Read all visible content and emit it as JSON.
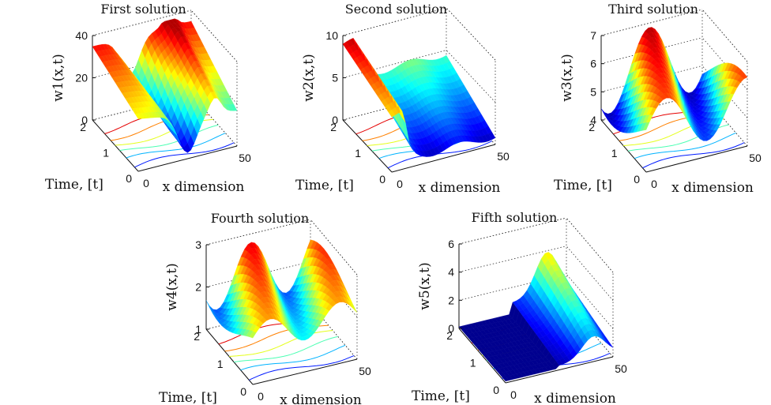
{
  "chart_data": [
    {
      "type": "surface",
      "title": "First solution",
      "zlabel": "w1(x,t)",
      "xlabel": "x dimension",
      "ylabel": "Time, [t]",
      "z_ticks": [
        "0",
        "20",
        "40"
      ],
      "t_ticks": [
        "0",
        "1",
        "2"
      ],
      "x_ticks": [
        "0",
        "50"
      ],
      "zlim": [
        0,
        40
      ],
      "tlim": [
        0,
        2
      ],
      "xlim": [
        0,
        50
      ],
      "colormap": "jet",
      "contour_projection": true
    },
    {
      "type": "surface",
      "title": "Second solution",
      "zlabel": "w2(x,t)",
      "xlabel": "x dimension",
      "ylabel": "Time, [t]",
      "z_ticks": [
        "0",
        "5",
        "10"
      ],
      "t_ticks": [
        "0",
        "1",
        "2"
      ],
      "x_ticks": [
        "0",
        "50"
      ],
      "zlim": [
        0,
        10
      ],
      "tlim": [
        0,
        2
      ],
      "xlim": [
        0,
        50
      ],
      "colormap": "jet",
      "contour_projection": true
    },
    {
      "type": "surface",
      "title": "Third solution",
      "zlabel": "w3(x,t)",
      "xlabel": "x dimension",
      "ylabel": "Time, [t]",
      "z_ticks": [
        "4",
        "5",
        "6",
        "7"
      ],
      "t_ticks": [
        "0",
        "1",
        "2"
      ],
      "x_ticks": [
        "0",
        "50"
      ],
      "zlim": [
        4,
        7
      ],
      "tlim": [
        0,
        2
      ],
      "xlim": [
        0,
        50
      ],
      "colormap": "jet",
      "contour_projection": true
    },
    {
      "type": "surface",
      "title": "Fourth solution",
      "zlabel": "w4(x,t)",
      "xlabel": "x dimension",
      "ylabel": "Time, [t]",
      "z_ticks": [
        "1",
        "2",
        "3"
      ],
      "t_ticks": [
        "0",
        "1",
        "2"
      ],
      "x_ticks": [
        "0",
        "50"
      ],
      "zlim": [
        1,
        3
      ],
      "tlim": [
        0,
        2
      ],
      "xlim": [
        0,
        50
      ],
      "colormap": "jet",
      "contour_projection": true
    },
    {
      "type": "surface",
      "title": "Fifth solution",
      "zlabel": "w5(x,t)",
      "xlabel": "x dimension",
      "ylabel": "Time, [t]",
      "z_ticks": [
        "0",
        "2",
        "4",
        "6"
      ],
      "t_ticks": [
        "0",
        "1",
        "2"
      ],
      "x_ticks": [
        "0",
        "50"
      ],
      "zlim": [
        0,
        6
      ],
      "tlim": [
        0,
        2
      ],
      "xlim": [
        0,
        50
      ],
      "colormap": "jet",
      "contour_projection": true
    }
  ]
}
